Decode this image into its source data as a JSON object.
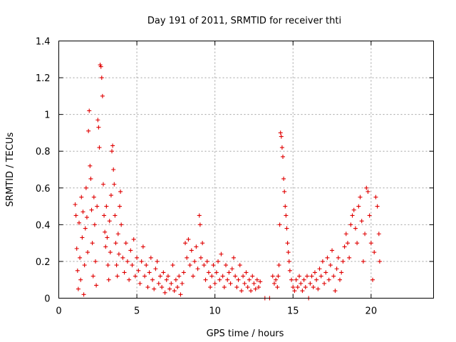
{
  "chart_data": {
    "type": "scatter",
    "title": "Day 191 of 2011, SRMTID for receiver thti",
    "xlabel": "GPS time / hours",
    "ylabel": "SRMTID / TECUs",
    "xlim": [
      0,
      24
    ],
    "ylim": [
      0,
      1.4
    ],
    "grid": true,
    "marker": "plus",
    "x_ticks": [
      {
        "value": 0,
        "label": "0"
      },
      {
        "value": 5,
        "label": "5"
      },
      {
        "value": 10,
        "label": "10"
      },
      {
        "value": 15,
        "label": "15"
      },
      {
        "value": 20,
        "label": "20"
      }
    ],
    "y_ticks": [
      {
        "value": 0,
        "label": "0"
      },
      {
        "value": 0.2,
        "label": "0.2"
      },
      {
        "value": 0.4,
        "label": "0.4"
      },
      {
        "value": 0.6,
        "label": "0.6"
      },
      {
        "value": 0.8,
        "label": "0.8"
      },
      {
        "value": 1.0,
        "label": "1"
      },
      {
        "value": 1.2,
        "label": "1.2"
      },
      {
        "value": 1.4,
        "label": "1.4"
      }
    ],
    "series": [
      {
        "name": "SRMTID",
        "color": "#e00000",
        "points": [
          [
            1.05,
            0.51
          ],
          [
            1.1,
            0.45
          ],
          [
            1.15,
            0.27
          ],
          [
            1.2,
            0.15
          ],
          [
            1.25,
            0.05
          ],
          [
            1.3,
            0.41
          ],
          [
            1.35,
            0.22
          ],
          [
            1.4,
            0.1
          ],
          [
            1.45,
            0.55
          ],
          [
            1.5,
            0.33
          ],
          [
            1.55,
            0.47
          ],
          [
            1.6,
            0.02
          ],
          [
            1.65,
            0.18
          ],
          [
            1.7,
            0.38
          ],
          [
            1.75,
            0.6
          ],
          [
            1.8,
            0.44
          ],
          [
            1.85,
            0.25
          ],
          [
            1.9,
            0.91
          ],
          [
            1.95,
            1.02
          ],
          [
            2.0,
            0.72
          ],
          [
            2.05,
            0.65
          ],
          [
            2.1,
            0.48
          ],
          [
            2.15,
            0.3
          ],
          [
            2.2,
            0.12
          ],
          [
            2.25,
            0.55
          ],
          [
            2.3,
            0.4
          ],
          [
            2.35,
            0.2
          ],
          [
            2.4,
            0.07
          ],
          [
            2.45,
            0.5
          ],
          [
            2.5,
            0.97
          ],
          [
            2.55,
            0.93
          ],
          [
            2.6,
            0.82
          ],
          [
            2.65,
            1.27
          ],
          [
            2.7,
            1.26
          ],
          [
            2.75,
            1.2
          ],
          [
            2.8,
            1.1
          ],
          [
            2.85,
            0.62
          ],
          [
            2.9,
            0.45
          ],
          [
            2.95,
            0.36
          ],
          [
            3.0,
            0.28
          ],
          [
            3.05,
            0.5
          ],
          [
            3.1,
            0.33
          ],
          [
            3.15,
            0.18
          ],
          [
            3.2,
            0.1
          ],
          [
            3.25,
            0.42
          ],
          [
            3.3,
            0.25
          ],
          [
            3.35,
            0.56
          ],
          [
            3.4,
            0.8
          ],
          [
            3.45,
            0.83
          ],
          [
            3.5,
            0.7
          ],
          [
            3.55,
            0.62
          ],
          [
            3.6,
            0.45
          ],
          [
            3.65,
            0.3
          ],
          [
            3.7,
            0.18
          ],
          [
            3.75,
            0.12
          ],
          [
            3.8,
            0.35
          ],
          [
            3.85,
            0.24
          ],
          [
            3.9,
            0.5
          ],
          [
            3.95,
            0.58
          ],
          [
            4.0,
            0.4
          ],
          [
            4.1,
            0.22
          ],
          [
            4.2,
            0.14
          ],
          [
            4.3,
            0.3
          ],
          [
            4.4,
            0.2
          ],
          [
            4.5,
            0.1
          ],
          [
            4.6,
            0.26
          ],
          [
            4.7,
            0.18
          ],
          [
            4.8,
            0.32
          ],
          [
            4.9,
            0.12
          ],
          [
            5.0,
            0.22
          ],
          [
            5.1,
            0.15
          ],
          [
            5.2,
            0.08
          ],
          [
            5.3,
            0.2
          ],
          [
            5.4,
            0.28
          ],
          [
            5.5,
            0.12
          ],
          [
            5.6,
            0.18
          ],
          [
            5.7,
            0.06
          ],
          [
            5.8,
            0.14
          ],
          [
            5.9,
            0.22
          ],
          [
            6.0,
            0.1
          ],
          [
            6.1,
            0.05
          ],
          [
            6.2,
            0.16
          ],
          [
            6.3,
            0.2
          ],
          [
            6.4,
            0.08
          ],
          [
            6.5,
            0.12
          ],
          [
            6.6,
            0.06
          ],
          [
            6.7,
            0.14
          ],
          [
            6.8,
            0.03
          ],
          [
            6.9,
            0.1
          ],
          [
            7.0,
            0.12
          ],
          [
            7.1,
            0.05
          ],
          [
            7.2,
            0.08
          ],
          [
            7.3,
            0.18
          ],
          [
            7.4,
            0.04
          ],
          [
            7.5,
            0.1
          ],
          [
            7.6,
            0.06
          ],
          [
            7.7,
            0.12
          ],
          [
            7.8,
            0.02
          ],
          [
            7.9,
            0.08
          ],
          [
            8.0,
            0.14
          ],
          [
            8.1,
            0.3
          ],
          [
            8.2,
            0.22
          ],
          [
            8.3,
            0.32
          ],
          [
            8.4,
            0.18
          ],
          [
            8.5,
            0.26
          ],
          [
            8.6,
            0.12
          ],
          [
            8.7,
            0.2
          ],
          [
            8.8,
            0.28
          ],
          [
            8.9,
            0.16
          ],
          [
            9.0,
            0.45
          ],
          [
            9.05,
            0.4
          ],
          [
            9.1,
            0.22
          ],
          [
            9.2,
            0.3
          ],
          [
            9.3,
            0.18
          ],
          [
            9.4,
            0.1
          ],
          [
            9.5,
            0.2
          ],
          [
            9.6,
            0.14
          ],
          [
            9.7,
            0.06
          ],
          [
            9.8,
            0.12
          ],
          [
            9.9,
            0.18
          ],
          [
            10.0,
            0.08
          ],
          [
            10.1,
            0.14
          ],
          [
            10.2,
            0.2
          ],
          [
            10.3,
            0.1
          ],
          [
            10.4,
            0.24
          ],
          [
            10.5,
            0.12
          ],
          [
            10.6,
            0.06
          ],
          [
            10.7,
            0.18
          ],
          [
            10.8,
            0.1
          ],
          [
            10.9,
            0.14
          ],
          [
            11.0,
            0.08
          ],
          [
            11.1,
            0.16
          ],
          [
            11.2,
            0.22
          ],
          [
            11.3,
            0.12
          ],
          [
            11.4,
            0.06
          ],
          [
            11.5,
            0.1
          ],
          [
            11.6,
            0.18
          ],
          [
            11.7,
            0.04
          ],
          [
            11.8,
            0.12
          ],
          [
            11.9,
            0.08
          ],
          [
            12.0,
            0.14
          ],
          [
            12.1,
            0.06
          ],
          [
            12.2,
            0.1
          ],
          [
            12.3,
            0.04
          ],
          [
            12.4,
            0.12
          ],
          [
            12.5,
            0.08
          ],
          [
            12.6,
            0.05
          ],
          [
            12.7,
            0.1
          ],
          [
            12.8,
            0.06
          ],
          [
            12.9,
            0.09
          ],
          [
            13.2,
            0.0
          ],
          [
            13.5,
            0.0
          ],
          [
            13.7,
            0.12
          ],
          [
            13.8,
            0.08
          ],
          [
            13.9,
            0.1
          ],
          [
            14.0,
            0.06
          ],
          [
            14.05,
            0.12
          ],
          [
            14.1,
            0.18
          ],
          [
            14.15,
            0.4
          ],
          [
            14.2,
            0.9
          ],
          [
            14.25,
            0.88
          ],
          [
            14.3,
            0.82
          ],
          [
            14.35,
            0.77
          ],
          [
            14.4,
            0.65
          ],
          [
            14.45,
            0.58
          ],
          [
            14.5,
            0.5
          ],
          [
            14.55,
            0.45
          ],
          [
            14.6,
            0.38
          ],
          [
            14.65,
            0.3
          ],
          [
            14.7,
            0.25
          ],
          [
            14.75,
            0.2
          ],
          [
            14.8,
            0.15
          ],
          [
            14.9,
            0.1
          ],
          [
            15.0,
            0.06
          ],
          [
            15.1,
            0.04
          ],
          [
            15.2,
            0.1
          ],
          [
            15.3,
            0.06
          ],
          [
            15.4,
            0.12
          ],
          [
            15.5,
            0.08
          ],
          [
            15.6,
            0.04
          ],
          [
            15.7,
            0.1
          ],
          [
            15.8,
            0.06
          ],
          [
            15.9,
            0.12
          ],
          [
            16.0,
            0.0
          ],
          [
            16.1,
            0.08
          ],
          [
            16.2,
            0.12
          ],
          [
            16.3,
            0.06
          ],
          [
            16.4,
            0.14
          ],
          [
            16.5,
            0.1
          ],
          [
            16.6,
            0.05
          ],
          [
            16.7,
            0.16
          ],
          [
            16.8,
            0.12
          ],
          [
            16.9,
            0.2
          ],
          [
            17.0,
            0.08
          ],
          [
            17.1,
            0.14
          ],
          [
            17.2,
            0.22
          ],
          [
            17.3,
            0.1
          ],
          [
            17.4,
            0.18
          ],
          [
            17.5,
            0.26
          ],
          [
            17.6,
            0.12
          ],
          [
            17.7,
            0.04
          ],
          [
            17.8,
            0.16
          ],
          [
            17.9,
            0.22
          ],
          [
            18.0,
            0.1
          ],
          [
            18.1,
            0.14
          ],
          [
            18.2,
            0.2
          ],
          [
            18.3,
            0.28
          ],
          [
            18.4,
            0.35
          ],
          [
            18.5,
            0.3
          ],
          [
            18.6,
            0.22
          ],
          [
            18.7,
            0.4
          ],
          [
            18.8,
            0.45
          ],
          [
            18.9,
            0.48
          ],
          [
            19.0,
            0.38
          ],
          [
            19.1,
            0.3
          ],
          [
            19.2,
            0.5
          ],
          [
            19.3,
            0.55
          ],
          [
            19.4,
            0.42
          ],
          [
            19.5,
            0.2
          ],
          [
            19.6,
            0.35
          ],
          [
            19.7,
            0.6
          ],
          [
            19.8,
            0.58
          ],
          [
            19.9,
            0.45
          ],
          [
            20.0,
            0.3
          ],
          [
            20.1,
            0.1
          ],
          [
            20.2,
            0.25
          ],
          [
            20.3,
            0.55
          ],
          [
            20.4,
            0.5
          ],
          [
            20.5,
            0.35
          ],
          [
            20.55,
            0.2
          ]
        ]
      }
    ]
  }
}
